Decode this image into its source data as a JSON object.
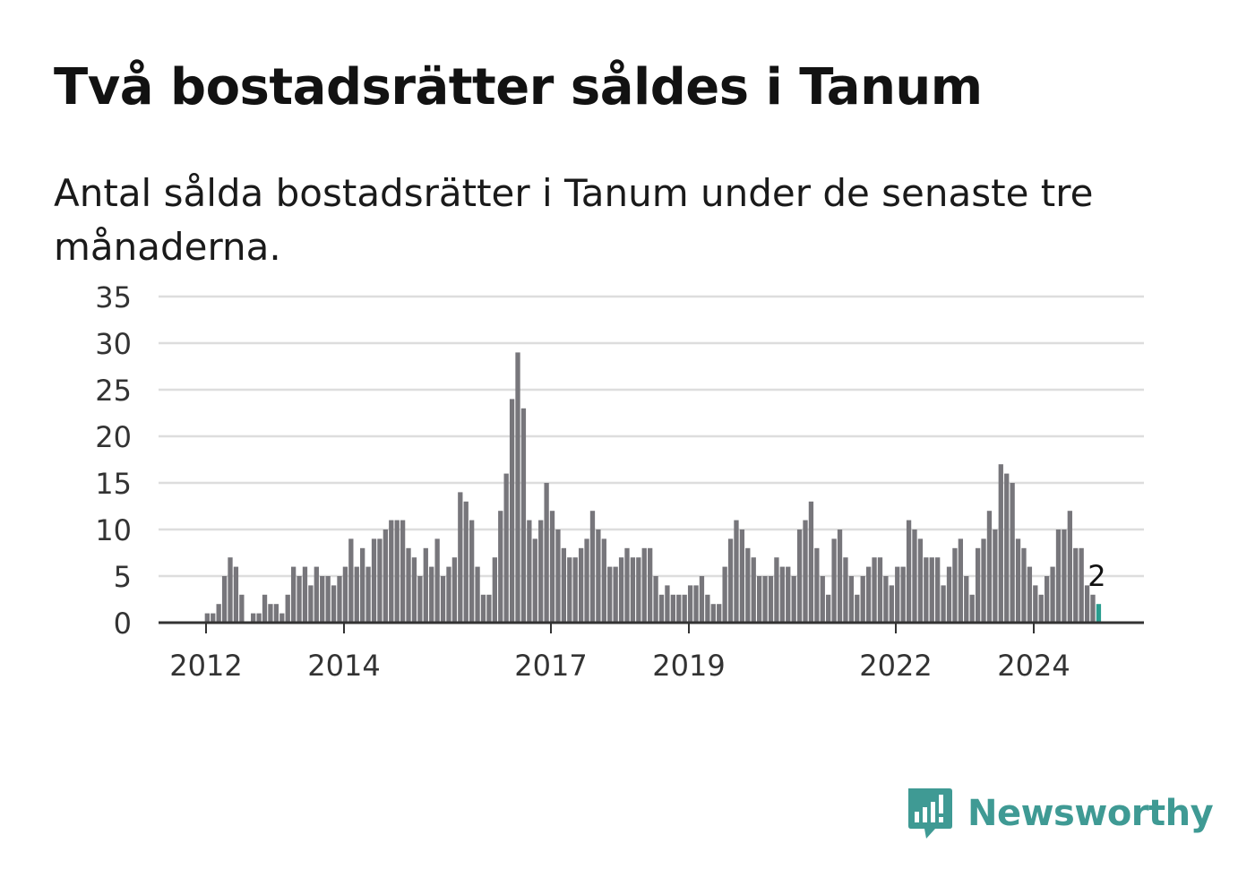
{
  "title": "Två bostadsrätter såldes i Tanum",
  "subtitle": "Antal sålda bostadsrätter i Tanum under de senaste tre månaderna.",
  "brand": {
    "name": "Newsworthy",
    "logo_icon": "bar-chart-speech-bubble-icon"
  },
  "colors": {
    "bar": "#77767b",
    "highlight": "#2a9d8f",
    "grid": "#dddddd",
    "axis": "#333333",
    "brand": "#3f9a94"
  },
  "chart_data": {
    "type": "bar",
    "ylim": [
      0,
      35
    ],
    "yticks": [
      0,
      5,
      10,
      15,
      20,
      25,
      30,
      35
    ],
    "xticks": [
      "2012",
      "2014",
      "2017",
      "2019",
      "2022",
      "2024"
    ],
    "grid": true,
    "highlight_label": "2",
    "values": [
      0,
      0,
      0,
      0,
      1,
      1,
      2,
      5,
      7,
      6,
      3,
      0,
      1,
      1,
      3,
      2,
      2,
      1,
      3,
      6,
      5,
      6,
      4,
      6,
      5,
      5,
      4,
      5,
      6,
      9,
      6,
      8,
      6,
      9,
      9,
      10,
      11,
      11,
      11,
      8,
      7,
      5,
      8,
      6,
      9,
      5,
      6,
      7,
      14,
      13,
      11,
      6,
      3,
      3,
      7,
      12,
      16,
      24,
      29,
      23,
      11,
      9,
      11,
      15,
      12,
      10,
      8,
      7,
      7,
      8,
      9,
      12,
      10,
      9,
      6,
      6,
      7,
      8,
      7,
      7,
      8,
      8,
      5,
      3,
      4,
      3,
      3,
      3,
      4,
      4,
      5,
      3,
      2,
      2,
      6,
      9,
      11,
      10,
      8,
      7,
      5,
      5,
      5,
      7,
      6,
      6,
      5,
      10,
      11,
      13,
      8,
      5,
      3,
      9,
      10,
      7,
      5,
      3,
      5,
      6,
      7,
      7,
      5,
      4,
      6,
      6,
      11,
      10,
      9,
      7,
      7,
      7,
      4,
      6,
      8,
      9,
      5,
      3,
      8,
      9,
      12,
      10,
      17,
      16,
      15,
      9,
      8,
      6,
      4,
      3,
      5,
      6,
      10,
      10,
      12,
      8,
      8,
      4,
      3,
      2
    ]
  }
}
